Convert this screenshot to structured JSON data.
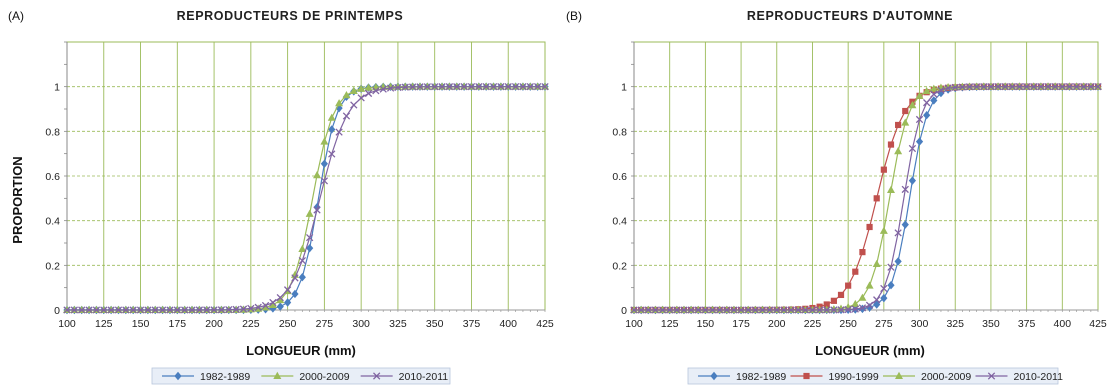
{
  "chart_data": [
    {
      "type": "line",
      "panel_label": "(A)",
      "title": "REPRODUCTEURS DE PRINTEMPS",
      "xlabel": "LONGUEUR (mm)",
      "ylabel": "PROPORTION",
      "xlim": [
        100,
        425
      ],
      "ylim": [
        0,
        1.2
      ],
      "x_ticks": [
        "100",
        "125",
        "150",
        "175",
        "200",
        "225",
        "250",
        "275",
        "300",
        "325",
        "350",
        "375",
        "400",
        "425"
      ],
      "y_ticks": [
        "0",
        "0.2",
        "0.4",
        "0.6",
        "0.8",
        "1"
      ],
      "grid": true,
      "legend_position": "bottom",
      "x_step": 5,
      "series": [
        {
          "name": "1982-1989",
          "color": "#4a7ebf",
          "marker": "diamond",
          "midpoint": 271,
          "slope": 0.16
        },
        {
          "name": "2000-2009",
          "color": "#9bbb59",
          "marker": "triangle",
          "midpoint": 267,
          "slope": 0.14
        },
        {
          "name": "2010-2011",
          "color": "#8064a2",
          "marker": "x",
          "midpoint": 272,
          "slope": 0.105
        }
      ]
    },
    {
      "type": "line",
      "panel_label": "(B)",
      "title": "REPRODUCTEURS D'AUTOMNE",
      "xlabel": "LONGUEUR (mm)",
      "ylabel": "",
      "xlim": [
        100,
        425
      ],
      "ylim": [
        0,
        1.2
      ],
      "x_ticks": [
        "100",
        "125",
        "150",
        "175",
        "200",
        "225",
        "250",
        "275",
        "300",
        "325",
        "350",
        "375",
        "400",
        "425"
      ],
      "y_ticks": [
        "0",
        "0.2",
        "0.4",
        "0.6",
        "0.8",
        "1"
      ],
      "grid": true,
      "legend_position": "bottom",
      "x_step": 5,
      "series": [
        {
          "name": "1982-1989",
          "color": "#4a7ebf",
          "marker": "diamond",
          "midpoint": 293,
          "slope": 0.16
        },
        {
          "name": "1990-1999",
          "color": "#c0504d",
          "marker": "square",
          "midpoint": 270,
          "slope": 0.105
        },
        {
          "name": "2000-2009",
          "color": "#9bbb59",
          "marker": "triangle",
          "midpoint": 279,
          "slope": 0.15
        },
        {
          "name": "2010-2011",
          "color": "#8064a2",
          "marker": "x",
          "midpoint": 289,
          "slope": 0.16
        }
      ]
    }
  ]
}
